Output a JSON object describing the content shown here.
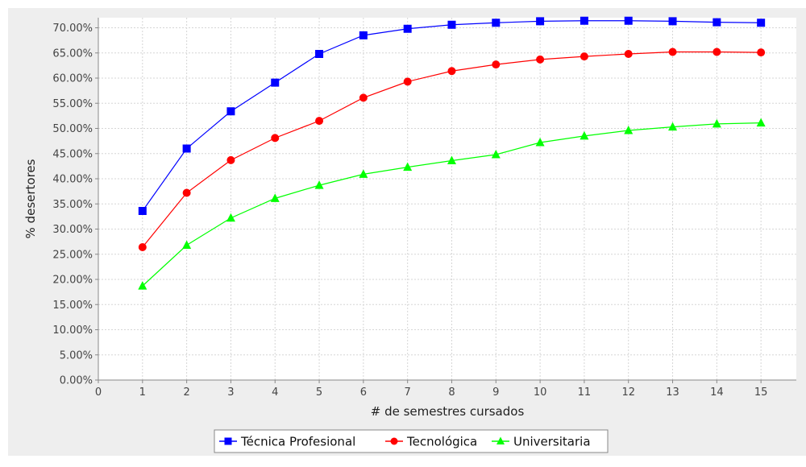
{
  "chart_data": {
    "type": "line",
    "title": "",
    "xlabel": "# de semestres cursados",
    "ylabel": "% desertores",
    "xlim": [
      0,
      15.8
    ],
    "ylim": [
      0,
      0.72
    ],
    "x_ticks": [
      0,
      1,
      2,
      3,
      4,
      5,
      6,
      7,
      8,
      9,
      10,
      11,
      12,
      13,
      14,
      15
    ],
    "y_ticks": [
      0,
      0.05,
      0.1,
      0.15,
      0.2,
      0.25,
      0.3,
      0.35,
      0.4,
      0.45,
      0.5,
      0.55,
      0.6,
      0.65,
      0.7
    ],
    "y_tick_labels": [
      "0.00%",
      "5.00%",
      "10.00%",
      "15.00%",
      "20.00%",
      "25.00%",
      "30.00%",
      "35.00%",
      "40.00%",
      "45.00%",
      "50.00%",
      "55.00%",
      "60.00%",
      "65.00%",
      "70.00%"
    ],
    "grid": true,
    "legend_position": "bottom",
    "x": [
      1,
      2,
      3,
      4,
      5,
      6,
      7,
      8,
      9,
      10,
      11,
      12,
      13,
      14,
      15
    ],
    "series": [
      {
        "name": "Técnica Profesional",
        "color": "#0000ff",
        "marker": "square",
        "values": [
          0.336,
          0.46,
          0.534,
          0.591,
          0.648,
          0.685,
          0.698,
          0.706,
          0.71,
          0.713,
          0.714,
          0.714,
          0.713,
          0.711,
          0.71
        ]
      },
      {
        "name": "Tecnológica",
        "color": "#ff0000",
        "marker": "circle",
        "values": [
          0.264,
          0.372,
          0.437,
          0.481,
          0.515,
          0.561,
          0.593,
          0.614,
          0.627,
          0.637,
          0.643,
          0.648,
          0.652,
          0.652,
          0.651
        ]
      },
      {
        "name": "Universitaria",
        "color": "#00ff00",
        "marker": "triangle",
        "values": [
          0.187,
          0.268,
          0.322,
          0.361,
          0.387,
          0.409,
          0.423,
          0.436,
          0.448,
          0.472,
          0.485,
          0.496,
          0.503,
          0.509,
          0.511
        ]
      }
    ]
  }
}
